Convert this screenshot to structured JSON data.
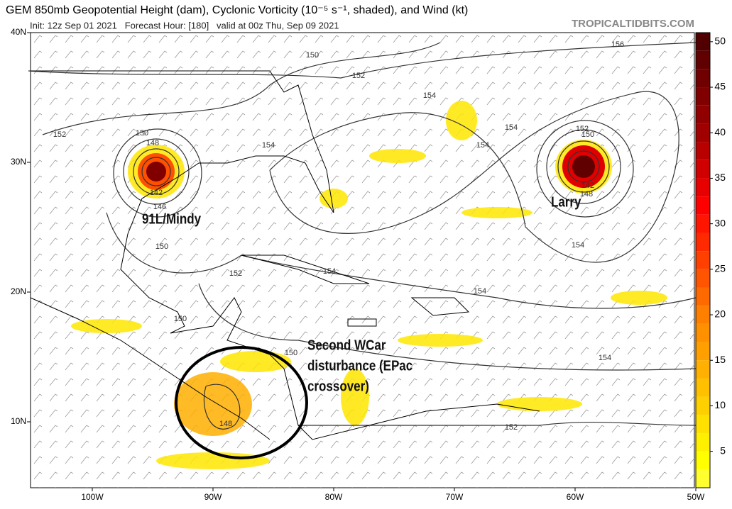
{
  "header": {
    "title": "GEM 850mb Geopotential Height (dam), Cyclonic Vorticity (10⁻⁵ s⁻¹, shaded), and Wind (kt)",
    "subtitle": "Init: 12z Sep 01 2021   Forecast Hour: [180]   valid at 00z Thu, Sep 09 2021",
    "credit": "TROPICALTIDBITS.COM"
  },
  "map": {
    "lat_ticks": [
      {
        "value": 40,
        "label": "40N"
      },
      {
        "value": 30,
        "label": "30N"
      },
      {
        "value": 20,
        "label": "20N"
      },
      {
        "value": 10,
        "label": "10N"
      }
    ],
    "lon_ticks": [
      {
        "value": -100,
        "label": "100W"
      },
      {
        "value": -90,
        "label": "90W"
      },
      {
        "value": -80,
        "label": "80W"
      },
      {
        "value": -70,
        "label": "70W"
      },
      {
        "value": -60,
        "label": "60W"
      },
      {
        "value": -50,
        "label": "50W"
      }
    ]
  },
  "colorbar": {
    "lim": [
      1,
      51
    ],
    "ticks": [
      5,
      10,
      15,
      20,
      25,
      30,
      35,
      40,
      45,
      50
    ],
    "colors": [
      "#ffff30",
      "#ffff00",
      "#fff000",
      "#ffe000",
      "#ffd000",
      "#ffc000",
      "#ffb000",
      "#ffa000",
      "#ff9000",
      "#ff8000",
      "#ff6a00",
      "#ff5500",
      "#ff4000",
      "#ff2a00",
      "#ff1500",
      "#ff0000",
      "#e80000",
      "#d00000",
      "#b80000",
      "#a00000",
      "#900000",
      "#800000",
      "#700000",
      "#600000",
      "#500000"
    ]
  },
  "annotations": {
    "mindy": "91L/Mindy",
    "larry": "Larry",
    "wcar": [
      "Second WCar",
      "disturbance (EPac",
      "crossover)"
    ]
  },
  "contour_labels": [
    "150",
    "152",
    "156",
    "154",
    "152",
    "150",
    "148",
    "142",
    "146",
    "154",
    "154",
    "154",
    "152",
    "150",
    "142",
    "148",
    "150",
    "154",
    "152",
    "154",
    "154",
    "150",
    "150",
    "154",
    "148",
    "152"
  ]
}
